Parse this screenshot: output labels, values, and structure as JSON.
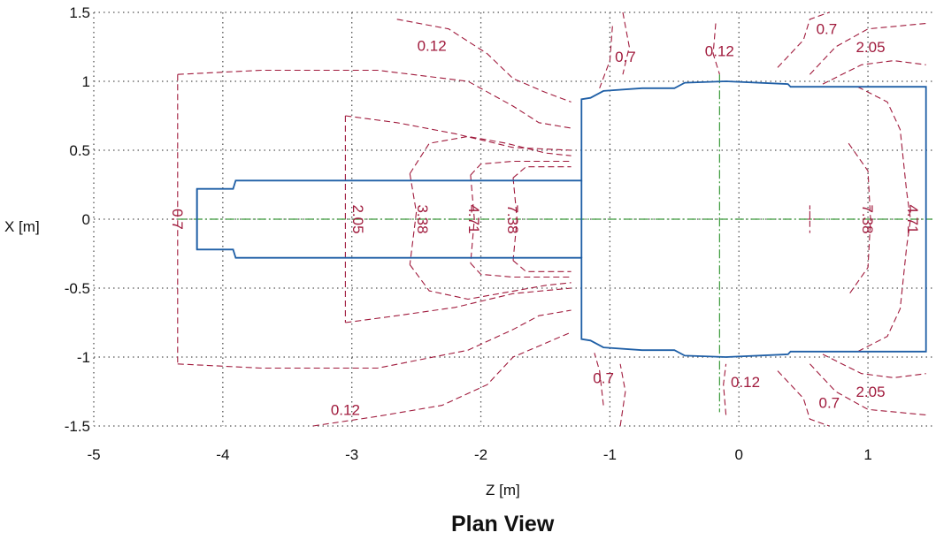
{
  "chart_data": {
    "type": "contour",
    "title": "Plan View",
    "xlabel": "Z [m]",
    "ylabel": "X [m]",
    "xlim": [
      -5,
      1.5
    ],
    "ylim": [
      -1.5,
      1.5
    ],
    "x_ticks": [
      -5,
      -4,
      -3,
      -2,
      -1,
      0,
      1
    ],
    "y_ticks": [
      -1.5,
      -1,
      -0.5,
      0,
      0.5,
      1,
      1.5
    ],
    "grid": true,
    "colors": {
      "contour": "#a01a3c",
      "outline": "#1f5fa6",
      "centerline": "#3a9a3a",
      "grid": "#555555"
    },
    "contour_levels": [
      {
        "level": "0.12",
        "labels": [
          {
            "z": -2.38,
            "x": 1.26
          },
          {
            "z": -0.15,
            "x": 1.22
          },
          {
            "z": 0.05,
            "x": -1.18
          },
          {
            "z": -3.05,
            "x": -1.38
          }
        ]
      },
      {
        "level": "0.7",
        "labels": [
          {
            "z": -4.35,
            "x": 0.0
          },
          {
            "z": -0.88,
            "x": 1.18
          },
          {
            "z": 0.68,
            "x": 1.38
          },
          {
            "z": -1.05,
            "x": -1.15
          },
          {
            "z": 0.7,
            "x": -1.33
          }
        ]
      },
      {
        "level": "2.05",
        "labels": [
          {
            "z": -2.95,
            "x": 0.0
          },
          {
            "z": 1.02,
            "x": 1.25
          },
          {
            "z": 1.02,
            "x": -1.25
          }
        ]
      },
      {
        "level": "3.38",
        "labels": [
          {
            "z": -2.45,
            "x": 0.0
          }
        ]
      },
      {
        "level": "4.71",
        "labels": [
          {
            "z": -2.05,
            "x": 0.0
          },
          {
            "z": 1.35,
            "x": 0.0
          }
        ]
      },
      {
        "level": "7.38",
        "labels": [
          {
            "z": -1.75,
            "x": 0.0
          },
          {
            "z": 1.0,
            "x": 0.0
          }
        ]
      }
    ],
    "outline": [
      [
        -4.2,
        0.22
      ],
      [
        -3.92,
        0.22
      ],
      [
        -3.9,
        0.28
      ],
      [
        -1.22,
        0.28
      ],
      [
        -1.22,
        0.87
      ],
      [
        -1.15,
        0.88
      ],
      [
        -1.05,
        0.93
      ],
      [
        -0.75,
        0.95
      ],
      [
        -0.5,
        0.95
      ],
      [
        -0.42,
        0.99
      ],
      [
        -0.1,
        1.0
      ],
      [
        0.38,
        0.98
      ],
      [
        0.4,
        0.96
      ],
      [
        1.45,
        0.96
      ],
      [
        1.45,
        -0.96
      ],
      [
        0.4,
        -0.96
      ],
      [
        0.38,
        -0.98
      ],
      [
        -0.1,
        -1.0
      ],
      [
        -0.42,
        -0.99
      ],
      [
        -0.5,
        -0.95
      ],
      [
        -0.75,
        -0.95
      ],
      [
        -1.05,
        -0.93
      ],
      [
        -1.15,
        -0.88
      ],
      [
        -1.22,
        -0.87
      ],
      [
        -1.22,
        -0.28
      ],
      [
        -3.9,
        -0.28
      ],
      [
        -3.92,
        -0.22
      ],
      [
        -4.2,
        -0.22
      ]
    ],
    "centerlines": [
      {
        "orientation": "horizontal",
        "x": 0
      },
      {
        "orientation": "vertical",
        "z": -0.15
      }
    ]
  }
}
